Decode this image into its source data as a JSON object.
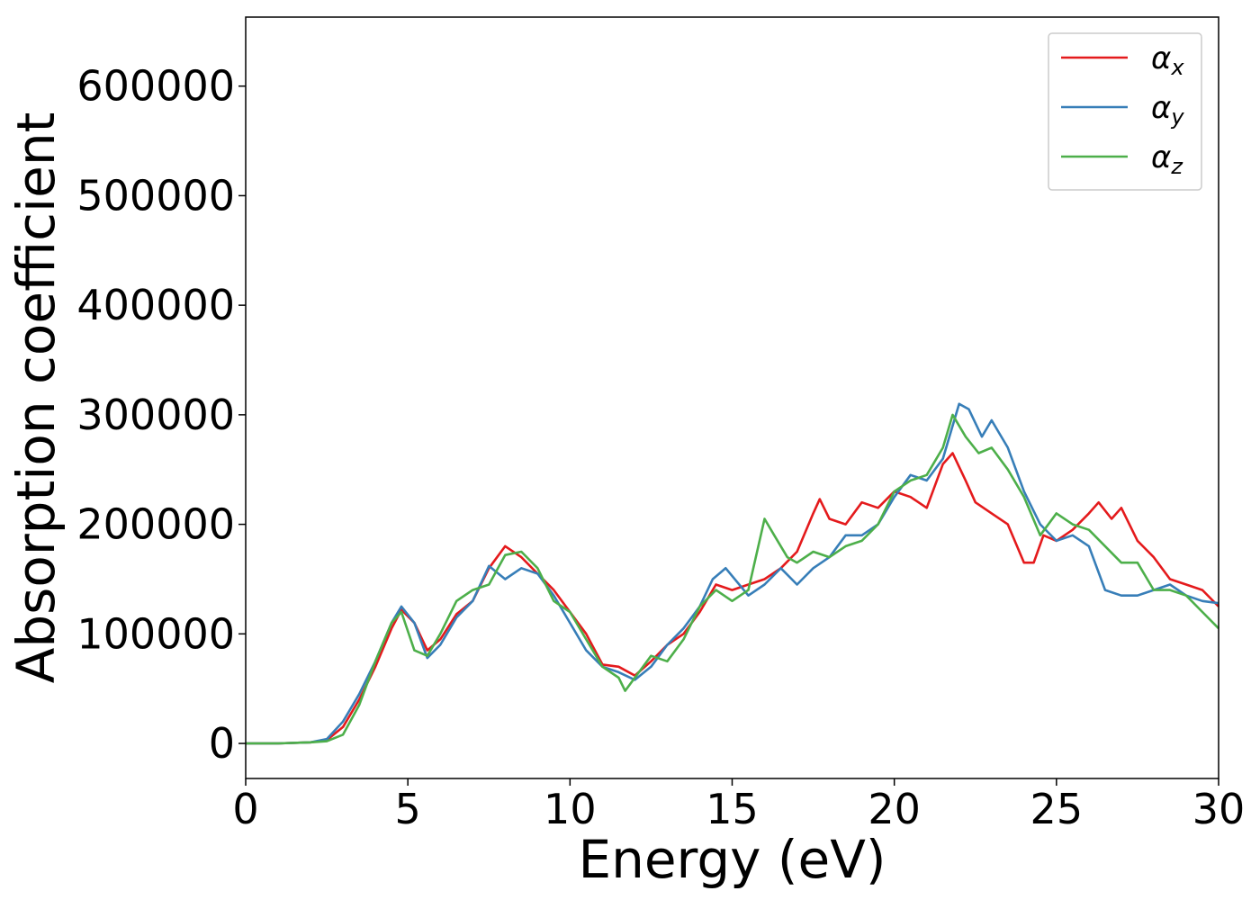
{
  "chart_data": {
    "type": "line",
    "title": "",
    "xlabel": "Energy (eV)",
    "ylabel": "Absorption coefficient",
    "xlim": [
      0,
      30
    ],
    "ylim": [
      -32000,
      663000
    ],
    "xticks": [
      0,
      5,
      10,
      15,
      20,
      25,
      30
    ],
    "yticks": [
      0,
      100000,
      200000,
      300000,
      400000,
      500000,
      600000
    ],
    "grid": false,
    "legend_position": "top-right",
    "series": [
      {
        "name": "α",
        "subscript": "x",
        "color": "#e41a1c",
        "x": [
          0,
          1,
          2,
          2.5,
          3,
          3.5,
          4,
          4.5,
          4.8,
          5.2,
          5.6,
          6,
          6.5,
          7,
          7.5,
          8,
          8.5,
          9,
          9.5,
          10,
          10.5,
          11,
          11.5,
          12,
          12.5,
          13,
          13.5,
          14,
          14.5,
          15,
          15.5,
          16,
          16.5,
          17,
          17.5,
          17.7,
          18,
          18.5,
          19,
          19.5,
          20,
          20.5,
          21,
          21.5,
          21.8,
          22.2,
          22.5,
          23,
          23.5,
          24,
          24.3,
          24.6,
          25,
          25.5,
          26,
          26.3,
          26.7,
          27,
          27.5,
          28,
          28.5,
          29,
          29.5,
          30
        ],
        "y": [
          0,
          0,
          1000,
          3000,
          15000,
          40000,
          70000,
          105000,
          122000,
          110000,
          85000,
          95000,
          118000,
          130000,
          160000,
          180000,
          170000,
          155000,
          140000,
          120000,
          100000,
          72000,
          70000,
          62000,
          75000,
          90000,
          100000,
          120000,
          145000,
          140000,
          145000,
          150000,
          160000,
          175000,
          210000,
          223000,
          205000,
          200000,
          220000,
          215000,
          230000,
          225000,
          215000,
          255000,
          265000,
          240000,
          220000,
          210000,
          200000,
          165000,
          165000,
          190000,
          185000,
          195000,
          210000,
          220000,
          205000,
          215000,
          185000,
          170000,
          150000,
          145000,
          140000,
          125000
        ]
      },
      {
        "name": "α",
        "subscript": "y",
        "color": "#377eb8",
        "x": [
          0,
          1,
          2,
          2.5,
          3,
          3.5,
          4,
          4.5,
          4.8,
          5.2,
          5.6,
          6,
          6.5,
          7,
          7.5,
          8,
          8.5,
          9,
          9.5,
          10,
          10.5,
          11,
          11.5,
          12,
          12.5,
          13,
          13.5,
          14,
          14.4,
          14.8,
          15.5,
          16,
          16.5,
          17,
          17.5,
          18,
          18.5,
          19,
          19.5,
          20,
          20.5,
          21,
          21.5,
          22,
          22.3,
          22.7,
          23,
          23.5,
          24,
          24.5,
          25,
          25.5,
          26,
          26.5,
          27,
          27.5,
          28,
          28.5,
          29,
          29.5,
          30
        ],
        "y": [
          0,
          0,
          1000,
          4000,
          20000,
          45000,
          75000,
          110000,
          125000,
          110000,
          78000,
          90000,
          115000,
          130000,
          162000,
          150000,
          160000,
          155000,
          135000,
          110000,
          85000,
          70000,
          65000,
          58000,
          70000,
          90000,
          105000,
          125000,
          150000,
          160000,
          135000,
          145000,
          160000,
          145000,
          160000,
          170000,
          190000,
          190000,
          200000,
          225000,
          245000,
          240000,
          260000,
          310000,
          305000,
          280000,
          295000,
          270000,
          230000,
          200000,
          185000,
          190000,
          180000,
          140000,
          135000,
          135000,
          140000,
          145000,
          135000,
          130000,
          128000
        ]
      },
      {
        "name": "α",
        "subscript": "z",
        "color": "#4daf4a",
        "x": [
          0,
          1,
          2,
          2.5,
          3,
          3.5,
          4,
          4.5,
          4.8,
          5.2,
          5.6,
          6,
          6.5,
          7,
          7.5,
          8,
          8.5,
          9,
          9.5,
          10,
          10.5,
          11,
          11.5,
          11.7,
          12,
          12.5,
          13,
          13.5,
          14,
          14.5,
          15,
          15.5,
          16,
          16.3,
          16.7,
          17,
          17.5,
          18,
          18.5,
          19,
          19.5,
          20,
          20.5,
          21,
          21.5,
          21.8,
          22.2,
          22.6,
          23,
          23.5,
          24,
          24.5,
          25,
          25.5,
          26,
          26.5,
          27,
          27.5,
          28,
          28.5,
          29,
          29.5,
          30
        ],
        "y": [
          0,
          0,
          1000,
          2000,
          8000,
          35000,
          75000,
          110000,
          120000,
          85000,
          80000,
          100000,
          130000,
          140000,
          145000,
          172000,
          175000,
          160000,
          130000,
          120000,
          95000,
          70000,
          60000,
          48000,
          60000,
          80000,
          75000,
          95000,
          125000,
          140000,
          130000,
          140000,
          205000,
          190000,
          170000,
          165000,
          175000,
          170000,
          180000,
          185000,
          200000,
          230000,
          240000,
          245000,
          270000,
          300000,
          280000,
          265000,
          270000,
          250000,
          225000,
          190000,
          210000,
          200000,
          195000,
          180000,
          165000,
          165000,
          140000,
          140000,
          135000,
          120000,
          105000
        ]
      }
    ]
  }
}
